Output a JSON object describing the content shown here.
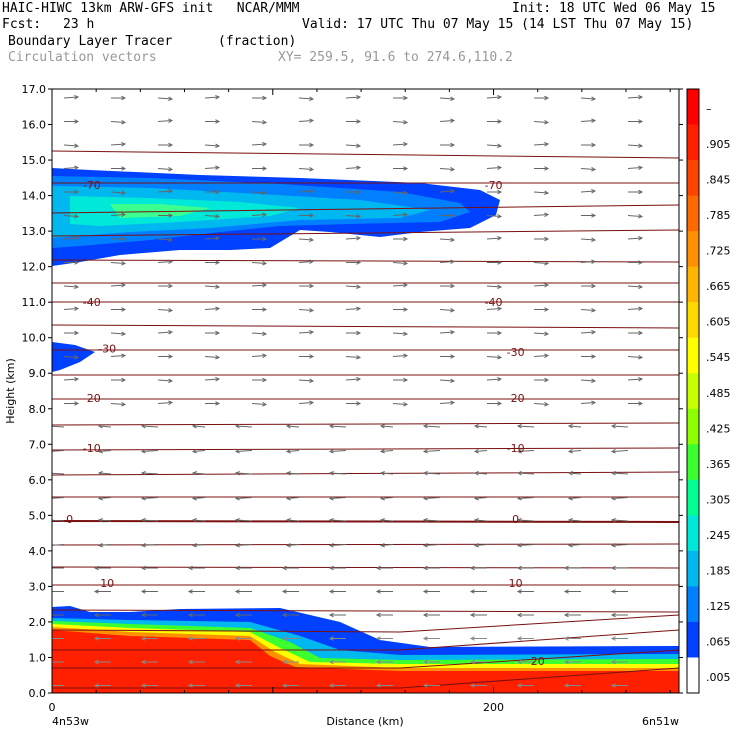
{
  "header": {
    "title_left": "HAIC-HIWC 13km ARW-GFS init   NCAR/MMM",
    "init": "Init: 18 UTC Wed 06 May 15",
    "fcst_label": "Fcst:",
    "fcst_value": "23 h",
    "valid": "Valid: 17 UTC Thu 07 May 15 (14 LST Thu 07 May 15)",
    "field_name": "Boundary Layer Tracer",
    "field_unit": "(fraction)",
    "vector_name": "Circulation vectors",
    "xy_range": "XY= 259.5, 91.6 to 274.6,110.2"
  },
  "chart_data": {
    "type": "heatmap",
    "title": "Boundary Layer Tracer",
    "xlabel": "Distance (km)",
    "ylabel": "Height (km)",
    "ylim": [
      0.0,
      17.0
    ],
    "xlim": [
      0,
      284
    ],
    "y_ticks": [
      "0.0",
      "1.0",
      "2.0",
      "3.0",
      "4.0",
      "5.0",
      "6.0",
      "7.0",
      "8.0",
      "9.0",
      "10.0",
      "11.0",
      "12.0",
      "13.0",
      "14.0",
      "15.0",
      "16.0",
      "17.0"
    ],
    "x_ticks": [
      {
        "value": 0,
        "label": "0"
      },
      {
        "value": 200,
        "label": "200"
      }
    ],
    "x_end_labels": {
      "left": "4n53w",
      "right": "6n51w"
    },
    "colorbar": {
      "labels": [
        "–",
        ".905",
        ".845",
        ".785",
        ".725",
        ".665",
        ".605",
        ".545",
        ".485",
        ".425",
        ".365",
        ".305",
        ".245",
        ".185",
        ".125",
        ".065",
        ".005"
      ],
      "colors": [
        "#ff0000",
        "#ff2000",
        "#ff4400",
        "#ff6a00",
        "#ff9000",
        "#ffb400",
        "#ffd800",
        "#ffff00",
        "#c8ff00",
        "#8cff00",
        "#3cff30",
        "#00ff90",
        "#00e8d8",
        "#00b8f0",
        "#0080ff",
        "#0040ff",
        "#ffffff"
      ]
    },
    "isotherm_labels": [
      {
        "text": "-70",
        "x": 18,
        "y": 14.3
      },
      {
        "text": "-70",
        "x": 200,
        "y": 14.3
      },
      {
        "text": "-40",
        "x": 18,
        "y": 11.0
      },
      {
        "text": "-40",
        "x": 200,
        "y": 11.0
      },
      {
        "text": "-30",
        "x": 25,
        "y": 9.7
      },
      {
        "text": "-30",
        "x": 210,
        "y": 9.6
      },
      {
        "text": "-20",
        "x": 18,
        "y": 8.3
      },
      {
        "text": "-20",
        "x": 210,
        "y": 8.3
      },
      {
        "text": "-10",
        "x": 18,
        "y": 6.9
      },
      {
        "text": "-10",
        "x": 210,
        "y": 6.9
      },
      {
        "text": "0",
        "x": 8,
        "y": 4.9
      },
      {
        "text": "0",
        "x": 210,
        "y": 4.9
      },
      {
        "text": "10",
        "x": 25,
        "y": 3.1
      },
      {
        "text": "10",
        "x": 210,
        "y": 3.1
      },
      {
        "text": "20",
        "x": 220,
        "y": 0.9
      }
    ]
  }
}
